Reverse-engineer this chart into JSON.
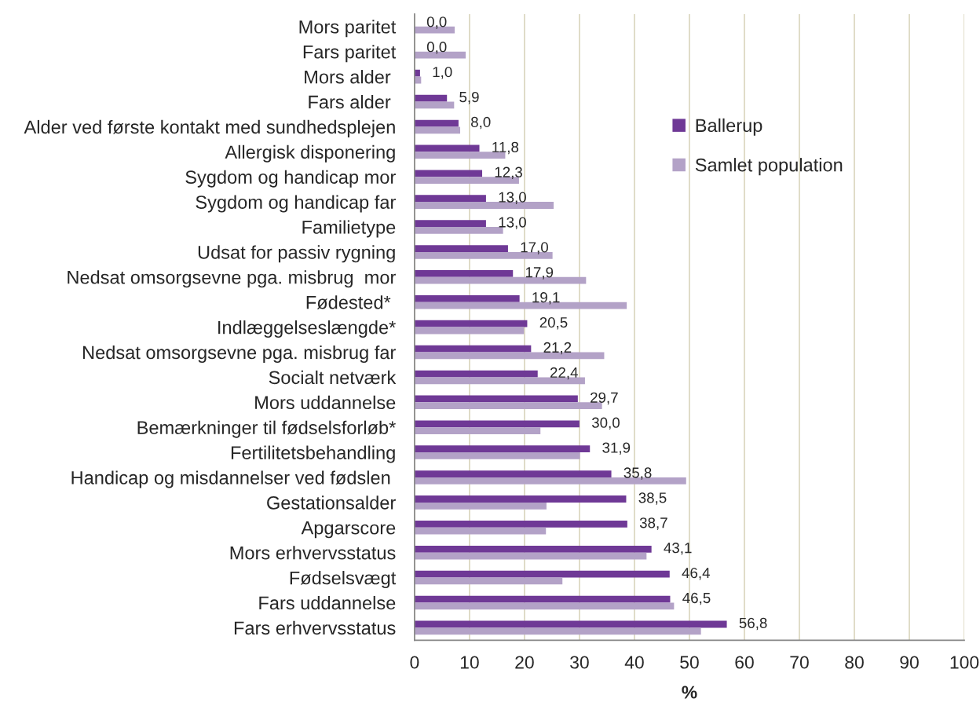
{
  "chart_data": {
    "type": "bar",
    "orientation": "horizontal",
    "xlabel": "%",
    "categories": [
      "Mors paritet",
      "Fars paritet",
      "Mors alder ",
      "Fars alder ",
      "Alder ved første kontakt med sundhedsplejen",
      "Allergisk disponering",
      "Sygdom og handicap mor",
      "Sygdom og handicap far",
      "Familietype",
      "Udsat for passiv rygning",
      "Nedsat omsorgsevne pga. misbrug  mor",
      "Fødested* ",
      "Indlæggelseslængde*",
      "Nedsat omsorgsevne pga. misbrug far",
      "Socialt netværk",
      "Mors uddannelse",
      "Bemærkninger til fødselsforløb*",
      "Fertilitetsbehandling",
      "Handicap og misdannelser ved fødslen ",
      "Gestationsalder",
      "Apgarscore",
      "Mors erhvervsstatus",
      "Fødselsvægt",
      "Fars uddannelse",
      "Fars erhvervsstatus"
    ],
    "series": [
      {
        "name": "Ballerup",
        "color": "#6f3996",
        "values": [
          0.0,
          0.0,
          1.0,
          5.9,
          8.0,
          11.8,
          12.3,
          13.0,
          13.0,
          17.0,
          17.9,
          19.1,
          20.5,
          21.2,
          22.4,
          29.7,
          30.0,
          31.9,
          35.8,
          38.5,
          38.7,
          43.1,
          46.4,
          46.5,
          56.8
        ],
        "value_labels": [
          "0,0",
          "0,0",
          "1,0",
          "5,9",
          "8,0",
          "11,8",
          "12,3",
          "13,0",
          "13,0",
          "17,0",
          "17,9",
          "19,1",
          "20,5",
          "21,2",
          "22,4",
          "29,7",
          "30,0",
          "31,9",
          "35,8",
          "38,5",
          "38,7",
          "43,1",
          "46,4",
          "46,5",
          "56,8"
        ]
      },
      {
        "name": "Samlet population",
        "color": "#b3a2c7",
        "values": [
          7.3,
          9.3,
          1.2,
          7.2,
          8.3,
          16.5,
          19.0,
          25.3,
          16.1,
          25.1,
          31.2,
          38.6,
          19.9,
          34.5,
          31.0,
          34.1,
          22.9,
          30.1,
          49.4,
          24.0,
          23.9,
          42.2,
          26.9,
          47.2,
          52.1
        ]
      }
    ],
    "xlim": [
      0,
      100
    ],
    "xticks": [
      0,
      10,
      20,
      30,
      40,
      50,
      60,
      70,
      80,
      90,
      100
    ],
    "grid": "x",
    "legend": "top right"
  }
}
